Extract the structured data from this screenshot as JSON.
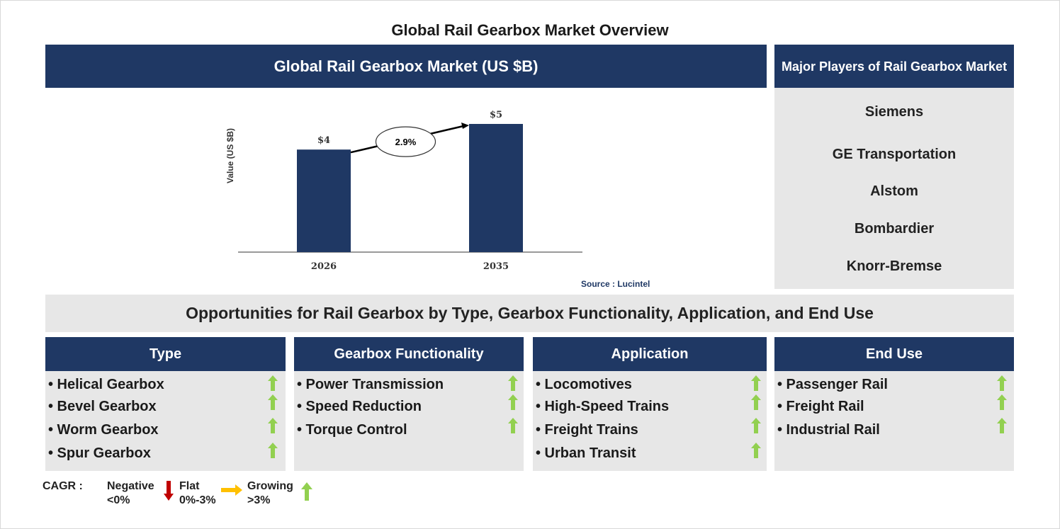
{
  "title": "Global Rail Gearbox Market Overview",
  "chart_header": "Global Rail Gearbox Market (US $B)",
  "chart_data": {
    "type": "bar",
    "categories": [
      "2026",
      "2035"
    ],
    "values": [
      4,
      5
    ],
    "value_labels": [
      "$4",
      "$5"
    ],
    "ylabel": "Value (US $B)",
    "ylim": [
      0,
      5
    ],
    "cagr_label": "2.9%",
    "bar_color": "#1f3864",
    "grid": false
  },
  "source": "Source : Lucintel",
  "players": {
    "header": "Major Players of Rail Gearbox Market",
    "items": [
      "Siemens",
      "GE Transportation",
      "Alstom",
      "Bombardier",
      "Knorr-Bremse"
    ]
  },
  "opportunities_title": "Opportunities for Rail Gearbox by Type, Gearbox Functionality, Application, and End Use",
  "segments": [
    {
      "title": "Type",
      "items": [
        "• Helical Gearbox",
        "• Bevel Gearbox",
        "• Worm Gearbox",
        "• Spur Gearbox"
      ],
      "trend_icon": "green-up-arrow-icon"
    },
    {
      "title": "Gearbox Functionality",
      "items": [
        "• Power Transmission",
        "• Speed Reduction",
        "• Torque Control"
      ],
      "trend_icon": "green-up-arrow-icon"
    },
    {
      "title": "Application",
      "items": [
        "• Locomotives",
        "• High-Speed Trains",
        "• Freight Trains",
        "• Urban Transit"
      ],
      "trend_icon": "green-up-arrow-icon"
    },
    {
      "title": "End Use",
      "items": [
        "• Passenger Rail",
        "• Freight Rail",
        "• Industrial Rail"
      ],
      "trend_icon": "green-up-arrow-icon"
    }
  ],
  "legend": {
    "cagr": "CAGR :",
    "negative": "Negative",
    "negative_range": "<0%",
    "flat": "Flat",
    "flat_range": "0%-3%",
    "growing": "Growing",
    "growing_range": ">3%"
  },
  "colors": {
    "navy": "#1f3864",
    "panel_grey": "#e7e7e7",
    "green": "#92d050",
    "red": "#c00000",
    "yellow": "#ffc000"
  }
}
